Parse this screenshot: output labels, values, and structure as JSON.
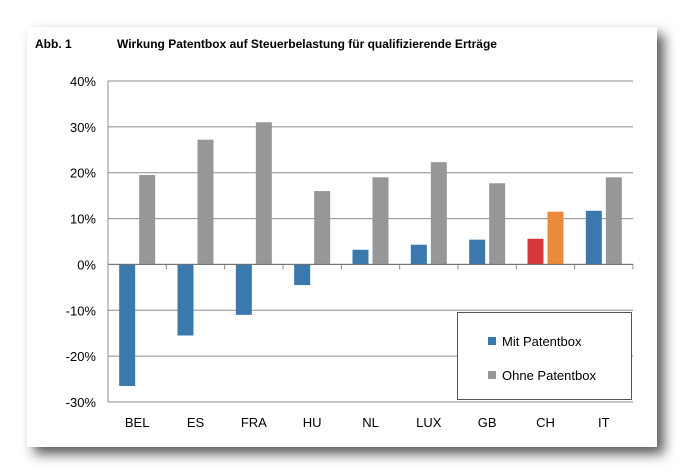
{
  "figure": {
    "label": "Abb. 1",
    "title": "Wirkung Patentbox auf Steuerbelastung für qualifizierende Erträge"
  },
  "colors": {
    "mit": "#3a78ad",
    "ohne": "#979797",
    "mit_ch": "#d7373b",
    "ohne_ch": "#ec8a3c",
    "grid": "#8c8c8c"
  },
  "chart_data": {
    "type": "bar",
    "categories": [
      "BEL",
      "ES",
      "FRA",
      "HU",
      "NL",
      "LUX",
      "GB",
      "CH",
      "IT"
    ],
    "series": [
      {
        "name": "Mit Patentbox",
        "values": [
          -26.5,
          -15.5,
          -11,
          -4.5,
          3.2,
          4.3,
          5.4,
          5.6,
          11.7
        ]
      },
      {
        "name": "Ohne Patentbox",
        "values": [
          19.5,
          27.2,
          31,
          16,
          19,
          22.3,
          17.7,
          11.5,
          19
        ]
      }
    ],
    "ylim": [
      -30,
      40
    ],
    "yticks": [
      -30,
      -20,
      -10,
      0,
      10,
      20,
      30,
      40
    ],
    "ytick_labels": [
      "-30%",
      "-20%",
      "-10%",
      "0%",
      "10%",
      "20%",
      "30%",
      "40%"
    ],
    "grid": true,
    "legend_position": "bottom-right",
    "highlight_category": "CH"
  }
}
